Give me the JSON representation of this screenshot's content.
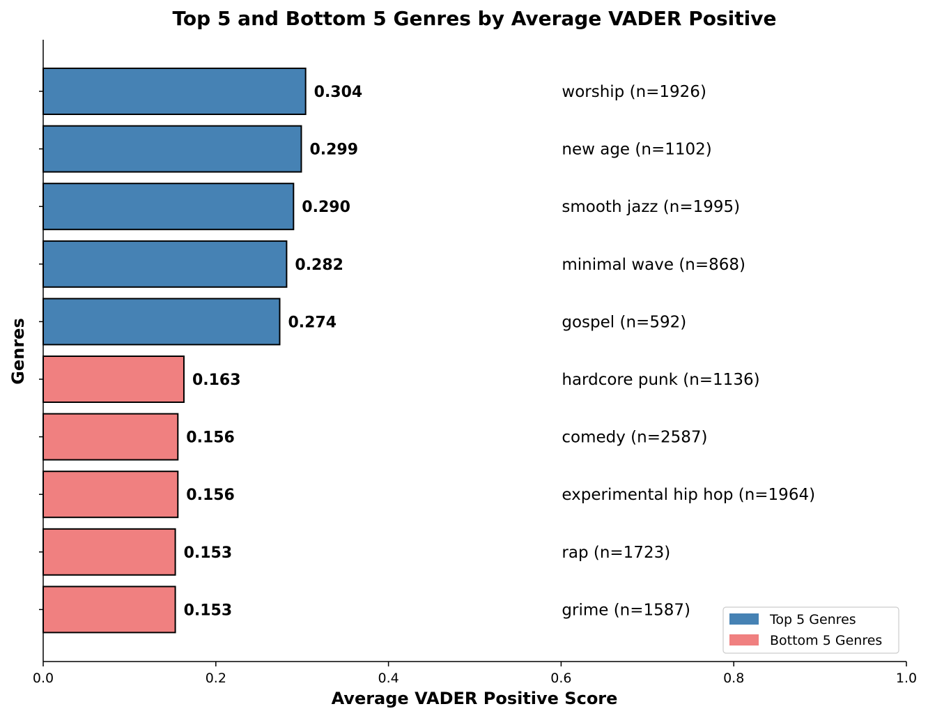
{
  "chart_data": {
    "type": "bar",
    "orientation": "horizontal",
    "title": "Top 5 and Bottom 5 Genres by Average VADER Positive",
    "xlabel": "Average VADER Positive Score",
    "ylabel": "Genres",
    "xlim": [
      0,
      1.0
    ],
    "xticks": [
      "0.0",
      "0.2",
      "0.4",
      "0.6",
      "0.8",
      "1.0"
    ],
    "grid": false,
    "legend_position": "bottom-right",
    "colors": {
      "top": "#4682b4",
      "bottom": "#f08080",
      "edge": "#000000"
    },
    "legend": [
      {
        "name": "Top 5 Genres",
        "group": "top"
      },
      {
        "name": "Bottom 5 Genres",
        "group": "bottom"
      }
    ],
    "bars": [
      {
        "genre_label": "worship (n=1926)",
        "value": 0.304,
        "value_label": "0.304",
        "group": "top"
      },
      {
        "genre_label": "new age (n=1102)",
        "value": 0.299,
        "value_label": "0.299",
        "group": "top"
      },
      {
        "genre_label": "smooth jazz (n=1995)",
        "value": 0.29,
        "value_label": "0.290",
        "group": "top"
      },
      {
        "genre_label": "minimal wave (n=868)",
        "value": 0.282,
        "value_label": "0.282",
        "group": "top"
      },
      {
        "genre_label": "gospel (n=592)",
        "value": 0.274,
        "value_label": "0.274",
        "group": "top"
      },
      {
        "genre_label": "hardcore punk (n=1136)",
        "value": 0.163,
        "value_label": "0.163",
        "group": "bottom"
      },
      {
        "genre_label": "comedy (n=2587)",
        "value": 0.156,
        "value_label": "0.156",
        "group": "bottom"
      },
      {
        "genre_label": "experimental hip hop (n=1964)",
        "value": 0.156,
        "value_label": "0.156",
        "group": "bottom"
      },
      {
        "genre_label": "rap (n=1723)",
        "value": 0.153,
        "value_label": "0.153",
        "group": "bottom"
      },
      {
        "genre_label": "grime (n=1587)",
        "value": 0.153,
        "value_label": "0.153",
        "group": "bottom"
      }
    ]
  }
}
